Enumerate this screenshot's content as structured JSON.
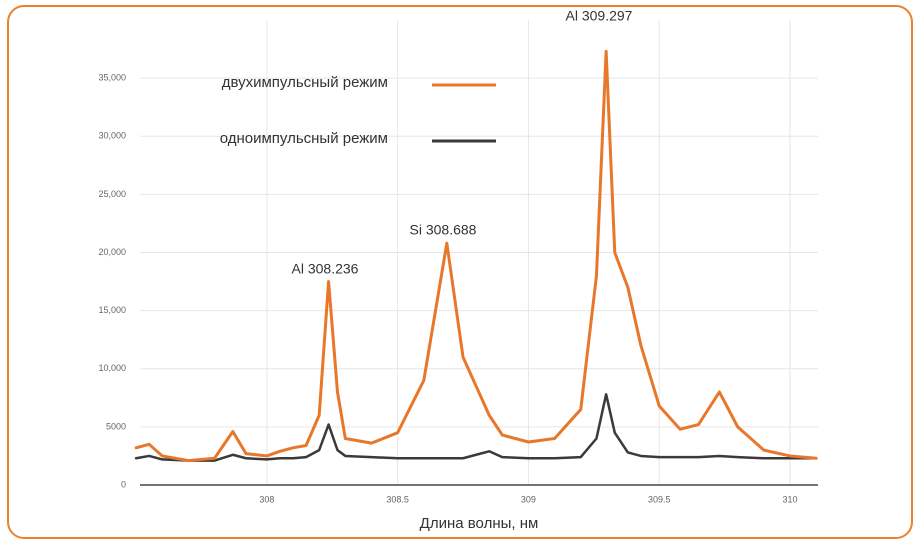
{
  "chart_data": {
    "type": "line",
    "x_label": "Длина волны, нм",
    "annotations": [
      "Al 308.236",
      "Si 308.688",
      "Al 309.297"
    ],
    "x": [
      307.5,
      307.55,
      307.6,
      307.7,
      307.8,
      307.87,
      307.92,
      308.0,
      308.05,
      308.1,
      308.15,
      308.2,
      308.236,
      308.27,
      308.3,
      308.4,
      308.5,
      308.6,
      308.688,
      308.75,
      308.8,
      308.85,
      308.9,
      309.0,
      309.1,
      309.2,
      309.26,
      309.297,
      309.33,
      309.38,
      309.43,
      309.5,
      309.58,
      309.65,
      309.73,
      309.8,
      309.9,
      310.0,
      310.1
    ],
    "series": [
      {
        "name": "двухимпульсный режим",
        "color": "#e8772a",
        "values": [
          3200,
          3500,
          2500,
          2100,
          2300,
          4600,
          2700,
          2500,
          2900,
          3200,
          3400,
          6000,
          17500,
          8000,
          4000,
          3600,
          4500,
          9000,
          20800,
          11000,
          8500,
          6000,
          4300,
          3700,
          4000,
          6500,
          18000,
          37300,
          20000,
          17000,
          12000,
          6800,
          4800,
          5200,
          8000,
          5000,
          3000,
          2500,
          2300
        ]
      },
      {
        "name": "одноимпульсный режим",
        "color": "#3a3a3a",
        "values": [
          2300,
          2500,
          2200,
          2100,
          2100,
          2600,
          2300,
          2200,
          2300,
          2300,
          2400,
          3000,
          5200,
          3000,
          2500,
          2400,
          2300,
          2300,
          2300,
          2300,
          2600,
          2900,
          2400,
          2300,
          2300,
          2400,
          4000,
          7800,
          4500,
          2800,
          2500,
          2400,
          2400,
          2400,
          2500,
          2400,
          2300,
          2300,
          2300
        ]
      }
    ],
    "xlim": [
      307.515,
      310.107
    ],
    "ylim": [
      0,
      40000
    ],
    "xticks": [
      308,
      308.5,
      309,
      309.5,
      310
    ],
    "yticks": [
      0,
      5000,
      {
        "value": 10000,
        "label": "10,000"
      },
      {
        "value": 15000,
        "label": "15,000"
      },
      {
        "value": 20000,
        "label": "20,000"
      },
      {
        "value": 25000,
        "label": "25,000"
      },
      {
        "value": 30000,
        "label": "30,000"
      },
      {
        "value": 35000,
        "label": "35,000"
      }
    ],
    "grid": true
  }
}
